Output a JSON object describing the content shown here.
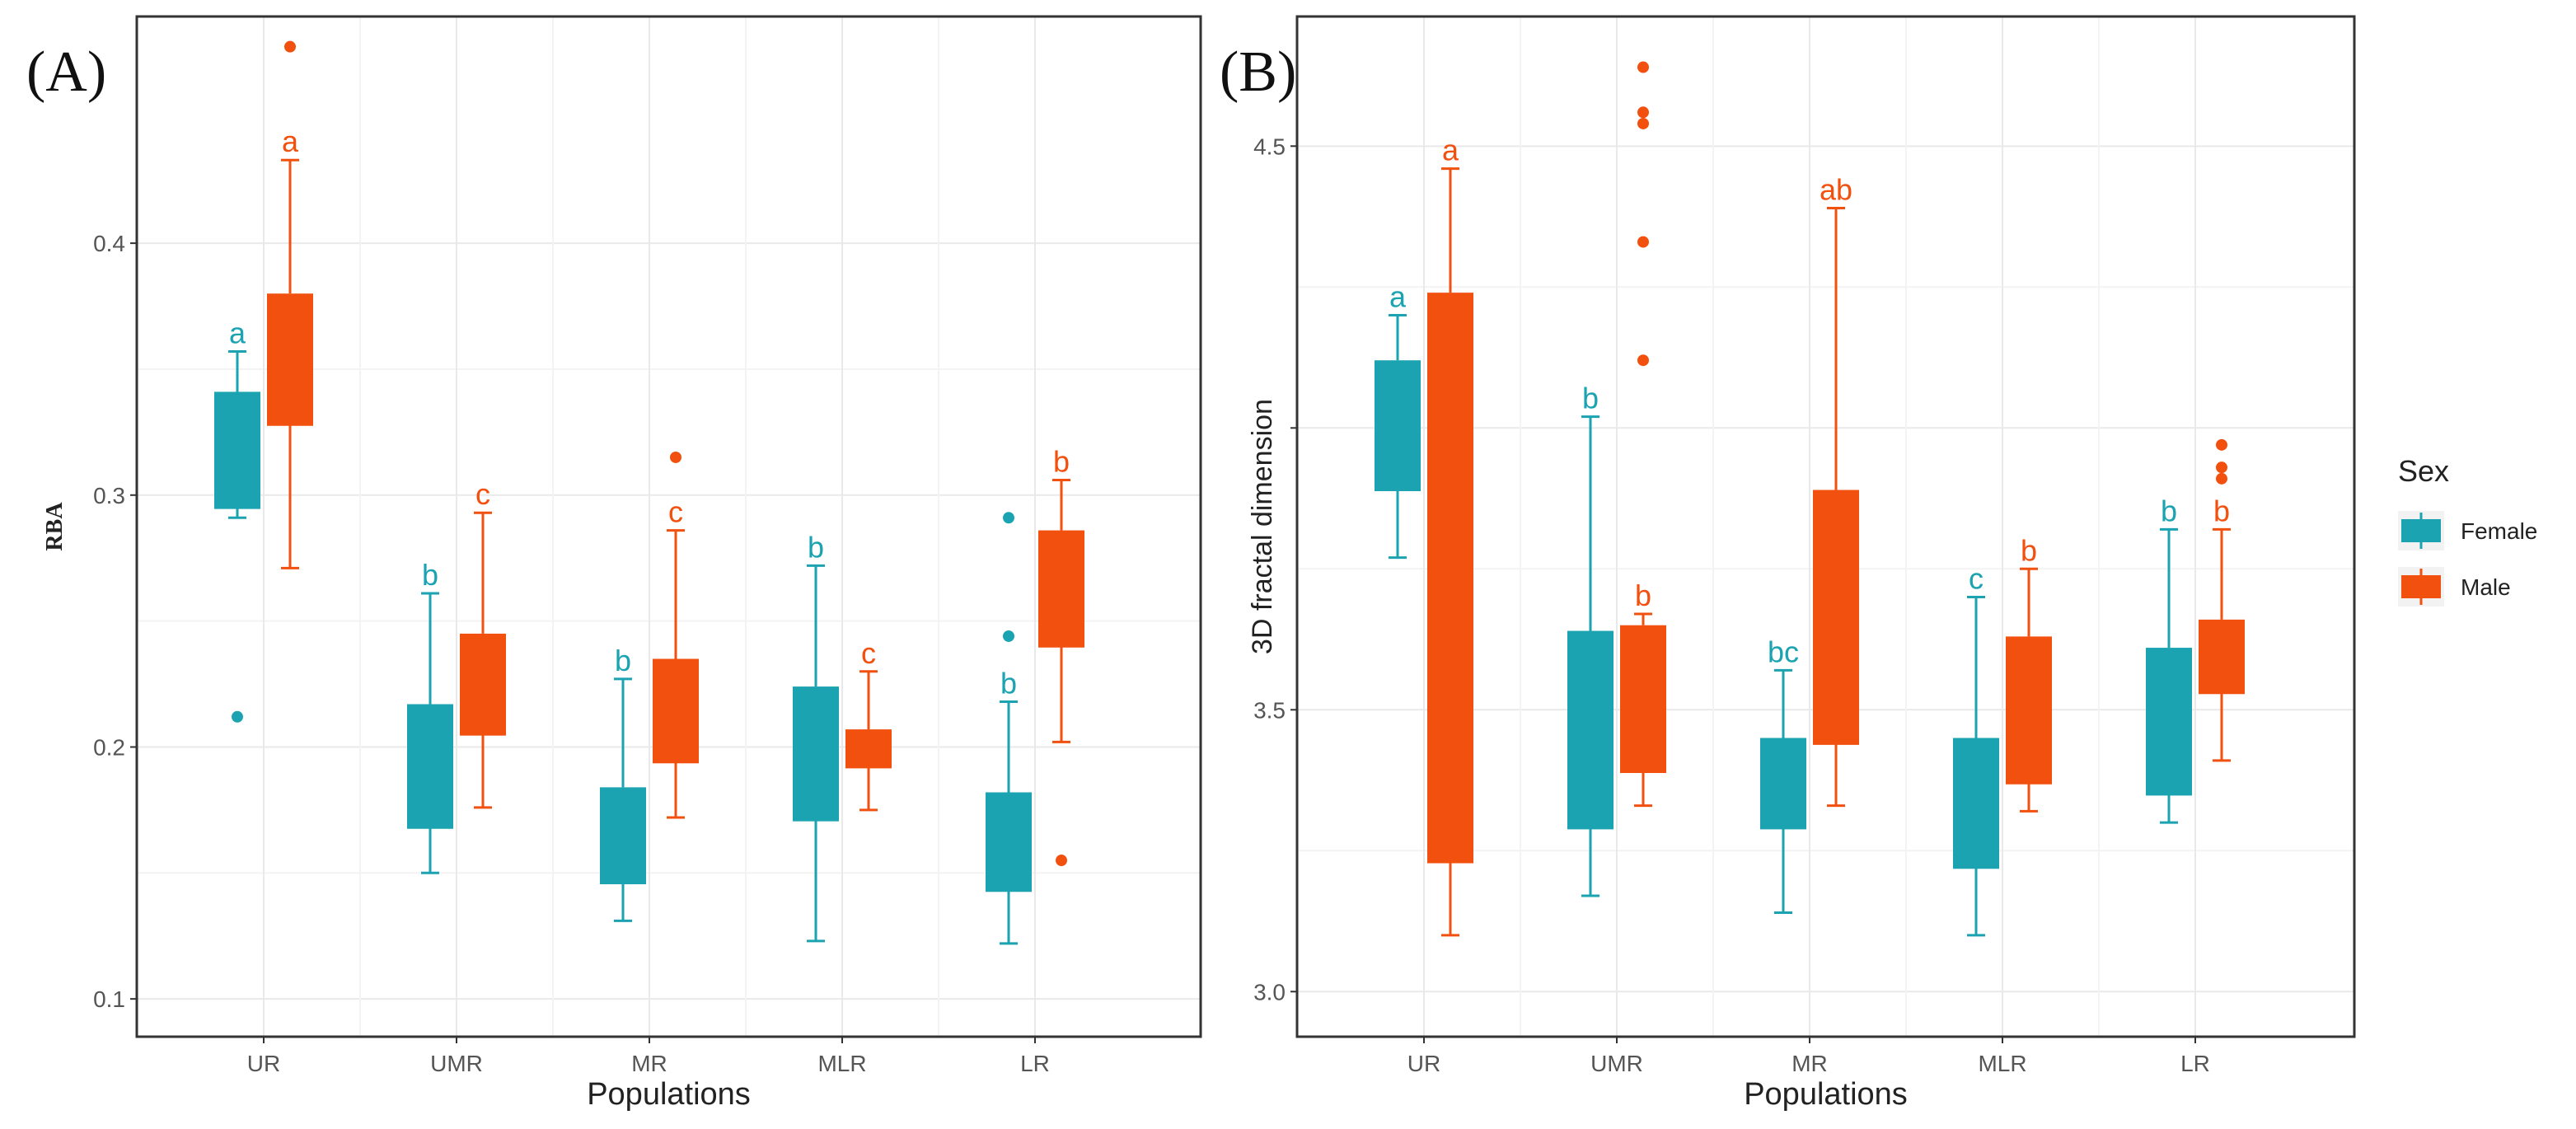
{
  "colors": {
    "female": "#1BA3B1",
    "male": "#F2500F",
    "grid": "#e9e9e9",
    "frame": "#333333"
  },
  "chart_data": [
    {
      "panel_label": "(A)",
      "type": "boxplot",
      "xlabel": "Populations",
      "ylabel": "RBA",
      "ylim": [
        0.085,
        0.49
      ],
      "yticks": [
        0.1,
        0.2,
        0.3,
        0.4
      ],
      "yticklabels": [
        "0.1",
        "0.2",
        "0.3",
        "0.4"
      ],
      "categories": [
        "UR",
        "UMR",
        "MR",
        "MLR",
        "LR"
      ],
      "grid": true,
      "series": [
        {
          "name": "Female",
          "boxes": [
            {
              "category": "UR",
              "whisker_low": 0.291,
              "q1": 0.295,
              "median": 0.295,
              "q3": 0.341,
              "whisker_high": 0.357,
              "outliers": [
                0.212
              ],
              "label": "a"
            },
            {
              "category": "UMR",
              "whisker_low": 0.15,
              "q1": 0.168,
              "median": 0.168,
              "q3": 0.217,
              "whisker_high": 0.261,
              "outliers": [],
              "label": "b"
            },
            {
              "category": "MR",
              "whisker_low": 0.131,
              "q1": 0.146,
              "median": 0.146,
              "q3": 0.184,
              "whisker_high": 0.227,
              "outliers": [],
              "label": "b"
            },
            {
              "category": "MLR",
              "whisker_low": 0.123,
              "q1": 0.171,
              "median": 0.171,
              "q3": 0.224,
              "whisker_high": 0.272,
              "outliers": [],
              "label": "b"
            },
            {
              "category": "LR",
              "whisker_low": 0.122,
              "q1": 0.143,
              "median": 0.143,
              "q3": 0.182,
              "whisker_high": 0.218,
              "outliers": [
                0.291,
                0.244
              ],
              "label": "b"
            }
          ]
        },
        {
          "name": "Male",
          "boxes": [
            {
              "category": "UR",
              "whisker_low": 0.271,
              "q1": 0.328,
              "median": 0.328,
              "q3": 0.38,
              "whisker_high": 0.433,
              "outliers": [
                0.478
              ],
              "label": "a"
            },
            {
              "category": "UMR",
              "whisker_low": 0.176,
              "q1": 0.205,
              "median": 0.205,
              "q3": 0.245,
              "whisker_high": 0.293,
              "outliers": [],
              "label": "c"
            },
            {
              "category": "MR",
              "whisker_low": 0.172,
              "q1": 0.194,
              "median": 0.194,
              "q3": 0.235,
              "whisker_high": 0.286,
              "outliers": [
                0.315
              ],
              "label": "c"
            },
            {
              "category": "MLR",
              "whisker_low": 0.175,
              "q1": 0.192,
              "median": 0.192,
              "q3": 0.207,
              "whisker_high": 0.23,
              "outliers": [],
              "label": "c"
            },
            {
              "category": "LR",
              "whisker_low": 0.202,
              "q1": 0.24,
              "median": 0.24,
              "q3": 0.286,
              "whisker_high": 0.306,
              "outliers": [
                0.155
              ],
              "label": "b"
            }
          ]
        }
      ]
    },
    {
      "panel_label": "(B)",
      "type": "boxplot",
      "xlabel": "Populations",
      "ylabel": "3D fractal dimension",
      "ylim": [
        2.92,
        4.73
      ],
      "yticks": [
        3.0,
        3.5,
        4.0,
        4.5
      ],
      "yticklabels": [
        "3.0",
        "3.5",
        "",
        "4.5"
      ],
      "categories": [
        "UR",
        "UMR",
        "MR",
        "MLR",
        "LR"
      ],
      "grid": true,
      "series": [
        {
          "name": "Female",
          "boxes": [
            {
              "category": "UR",
              "whisker_low": 3.77,
              "q1": 3.89,
              "median": 3.89,
              "q3": 4.12,
              "whisker_high": 4.2,
              "outliers": [],
              "label": "a"
            },
            {
              "category": "UMR",
              "whisker_low": 3.17,
              "q1": 3.29,
              "median": 3.29,
              "q3": 3.64,
              "whisker_high": 4.02,
              "outliers": [],
              "label": "b"
            },
            {
              "category": "MR",
              "whisker_low": 3.14,
              "q1": 3.29,
              "median": 3.29,
              "q3": 3.45,
              "whisker_high": 3.57,
              "outliers": [],
              "label": "bc"
            },
            {
              "category": "MLR",
              "whisker_low": 3.1,
              "q1": 3.22,
              "median": 3.22,
              "q3": 3.45,
              "whisker_high": 3.7,
              "outliers": [],
              "label": "c"
            },
            {
              "category": "LR",
              "whisker_low": 3.3,
              "q1": 3.35,
              "median": 3.35,
              "q3": 3.61,
              "whisker_high": 3.82,
              "outliers": [],
              "label": "b"
            }
          ]
        },
        {
          "name": "Male",
          "boxes": [
            {
              "category": "UR",
              "whisker_low": 3.1,
              "q1": 3.23,
              "median": 3.23,
              "q3": 4.24,
              "whisker_high": 4.46,
              "outliers": [],
              "label": "a"
            },
            {
              "category": "UMR",
              "whisker_low": 3.33,
              "q1": 3.39,
              "median": 3.39,
              "q3": 3.65,
              "whisker_high": 3.67,
              "outliers": [
                4.64,
                4.56,
                4.54,
                4.33,
                4.12
              ],
              "label": "b"
            },
            {
              "category": "MR",
              "whisker_low": 3.33,
              "q1": 3.44,
              "median": 3.44,
              "q3": 3.89,
              "whisker_high": 4.39,
              "outliers": [],
              "label": "ab"
            },
            {
              "category": "MLR",
              "whisker_low": 3.32,
              "q1": 3.37,
              "median": 3.37,
              "q3": 3.63,
              "whisker_high": 3.75,
              "outliers": [],
              "label": "b"
            },
            {
              "category": "LR",
              "whisker_low": 3.41,
              "q1": 3.53,
              "median": 3.53,
              "q3": 3.66,
              "whisker_high": 3.82,
              "outliers": [
                3.97,
                3.93,
                3.91
              ],
              "label": "b"
            }
          ]
        }
      ]
    }
  ],
  "legend": {
    "title": "Sex",
    "items": [
      {
        "label": "Female",
        "color": "#1BA3B1"
      },
      {
        "label": "Male",
        "color": "#F2500F"
      }
    ]
  }
}
